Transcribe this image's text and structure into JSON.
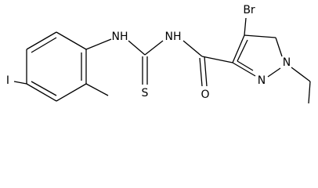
{
  "atoms": [
    {
      "label": "Br"
    },
    {
      "label": "N"
    },
    {
      "label": "N"
    },
    {
      "label": "O"
    },
    {
      "label": "NH"
    },
    {
      "label": "NH"
    },
    {
      "label": "S"
    },
    {
      "label": "I"
    }
  ]
}
